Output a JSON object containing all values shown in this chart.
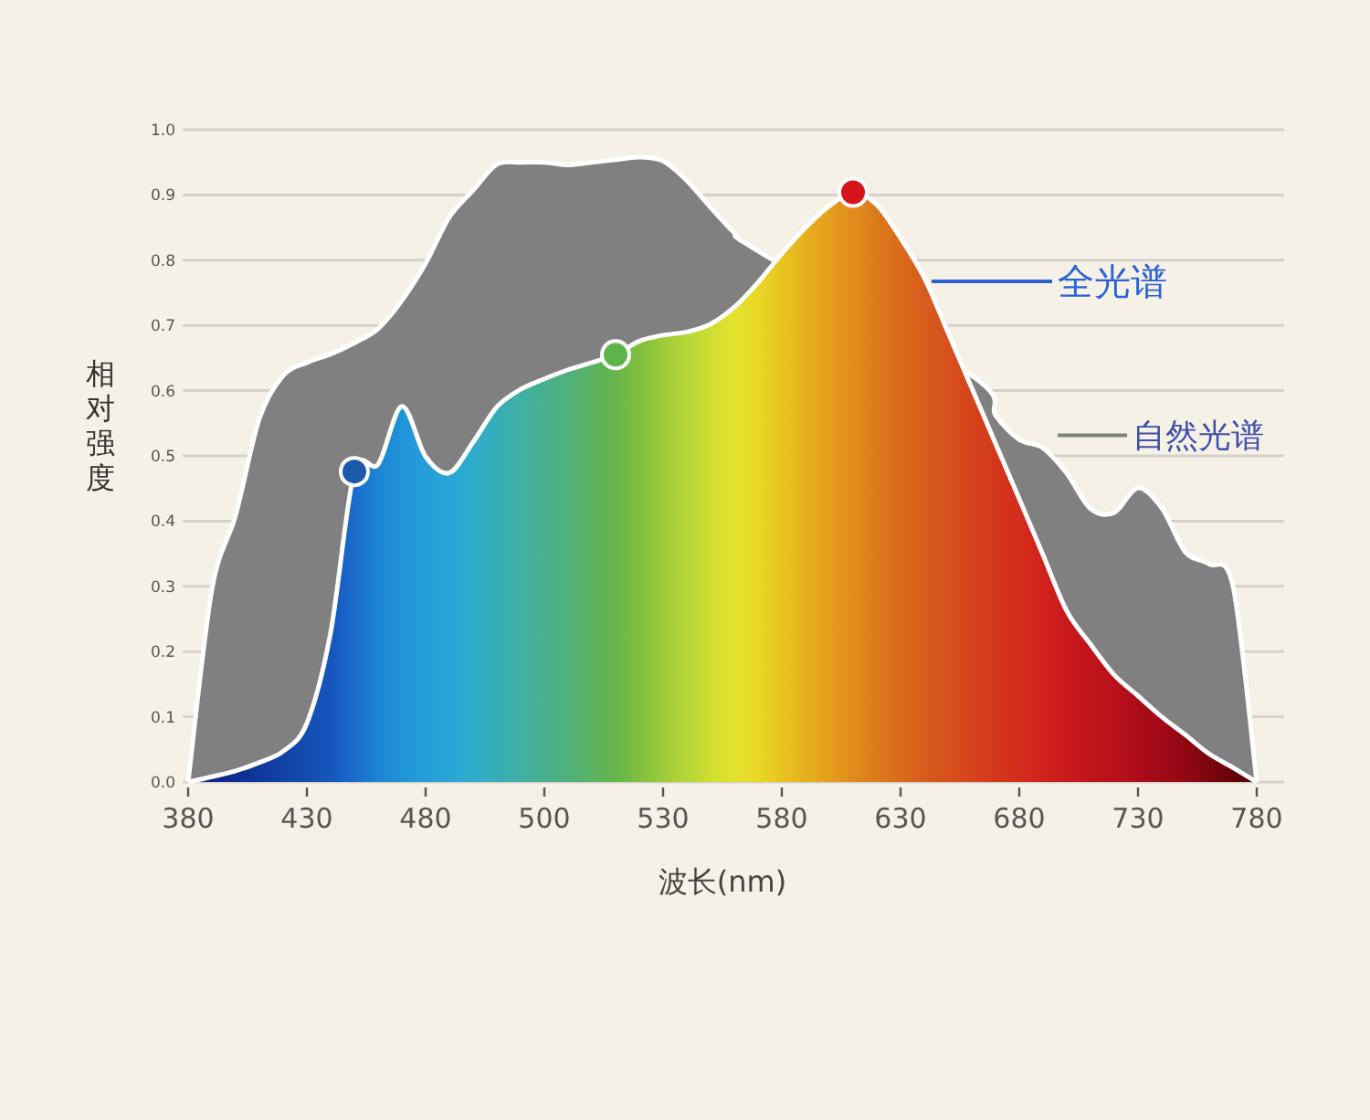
{
  "chart_data": {
    "type": "area",
    "xlabel": "波长(nm)",
    "ylabel": "相对强度",
    "ylim": [
      0,
      1
    ],
    "categories": [
      "380",
      null,
      null,
      null,
      null,
      "430",
      null,
      null,
      null,
      null,
      "480",
      null,
      null,
      null,
      null,
      "500",
      null,
      null,
      null,
      null,
      "530",
      null,
      null,
      null,
      null,
      "580",
      null,
      null,
      null,
      null,
      "630",
      null,
      null,
      null,
      null,
      "680",
      null,
      null,
      null,
      null,
      "730",
      null,
      null,
      null,
      null,
      "780"
    ],
    "yticks": [
      {
        "value": 0,
        "label": "0.0"
      },
      0.1,
      0.2,
      0.3,
      0.4,
      0.5,
      0.6,
      0.7,
      0.8,
      0.9,
      {
        "value": 1,
        "label": "1.0"
      }
    ],
    "grid": "y",
    "legend": "right",
    "series": [
      {
        "name": "自然光谱",
        "color": "#808080",
        "values": [
          0,
          0.295,
          0.409,
          0.557,
          0.623,
          0.643,
          0.656,
          0.673,
          0.695,
          0.738,
          0.795,
          0.866,
          0.907,
          0.947,
          0.95,
          0.95,
          0.946,
          0.95,
          0.954,
          0.958,
          0.952,
          0.922,
          0.881,
          0.842,
          0.814,
          null,
          null,
          null,
          null,
          null,
          null,
          null,
          null,
          0.623,
          0.562,
          0.525,
          0.512,
          0.473,
          0.419,
          0.413,
          0.451,
          0.42,
          0.352,
          0.334,
          0.3,
          0
        ]
      },
      {
        "name": "全光谱",
        "values": [
          0,
          0.008,
          0.017,
          0.03,
          0.047,
          0.09,
          0.229,
          0.476,
          0.487,
          0.576,
          0.499,
          0.474,
          0.521,
          0.575,
          0.602,
          0.618,
          0.632,
          0.643,
          0.655,
          0.676,
          0.685,
          0.69,
          0.702,
          0.728,
          0.766,
          0.81,
          0.85,
          0.883,
          0.904,
          0.885,
          0.834,
          0.773,
          0.689,
          0.604,
          0.519,
          0.434,
          0.348,
          0.262,
          0.211,
          0.164,
          0.132,
          0.1,
          0.072,
          0.043,
          0.022,
          0
        ],
        "colors": [
          "#0b1f7a",
          "#0d2686",
          "#0e2e92",
          "#0f389c",
          "#1142a6",
          "#134cb0",
          "#1656bc",
          "#1a6ccc",
          "#1d84d4",
          "#2094d8",
          "#249ed8",
          "#28a6d6",
          "#2eacca",
          "#36aeb8",
          "#3eb0a4",
          "#46b08e",
          "#4eb07a",
          "#5ab262",
          "#66b64c",
          "#80c040",
          "#9ccb3a",
          "#b6d636",
          "#d0de32",
          "#e2e22c",
          "#e8d826",
          "#e8c420",
          "#e6b01e",
          "#e49e1c",
          "#e08c1c",
          "#dc7a1c",
          "#da6a1c",
          "#d85c1c",
          "#d6501c",
          "#d5441c",
          "#d4381c",
          "#d32c1c",
          "#d0221c",
          "#c81a1c",
          "#c0141c",
          "#b8101c",
          "#ac0c1a",
          "#a00a16",
          "#900812",
          "#7c060e",
          "#64040a",
          "#540008"
        ]
      },
      {
        "type": "scatter",
        "marker": "circle",
        "values": [
          null,
          null,
          null,
          null,
          null,
          null,
          null,
          0.476,
          null,
          null,
          null,
          null,
          null,
          null,
          null,
          null,
          null,
          null,
          0.655,
          null,
          null,
          null,
          null,
          null,
          null,
          null,
          null,
          null,
          0.904,
          null,
          null,
          null,
          null,
          null,
          null,
          null,
          null,
          null,
          null,
          null,
          null,
          null,
          null,
          null,
          null,
          null
        ],
        "colors": [
          null,
          null,
          null,
          null,
          null,
          null,
          null,
          "#1a5aa8",
          null,
          null,
          null,
          null,
          null,
          null,
          null,
          null,
          null,
          null,
          "#5bb548",
          null,
          null,
          null,
          null,
          null,
          null,
          null,
          null,
          null,
          "#d7141a",
          null,
          null,
          null,
          null,
          null,
          null,
          null,
          null,
          null,
          null,
          null,
          null,
          null,
          null,
          null,
          null,
          null
        ]
      }
    ]
  }
}
